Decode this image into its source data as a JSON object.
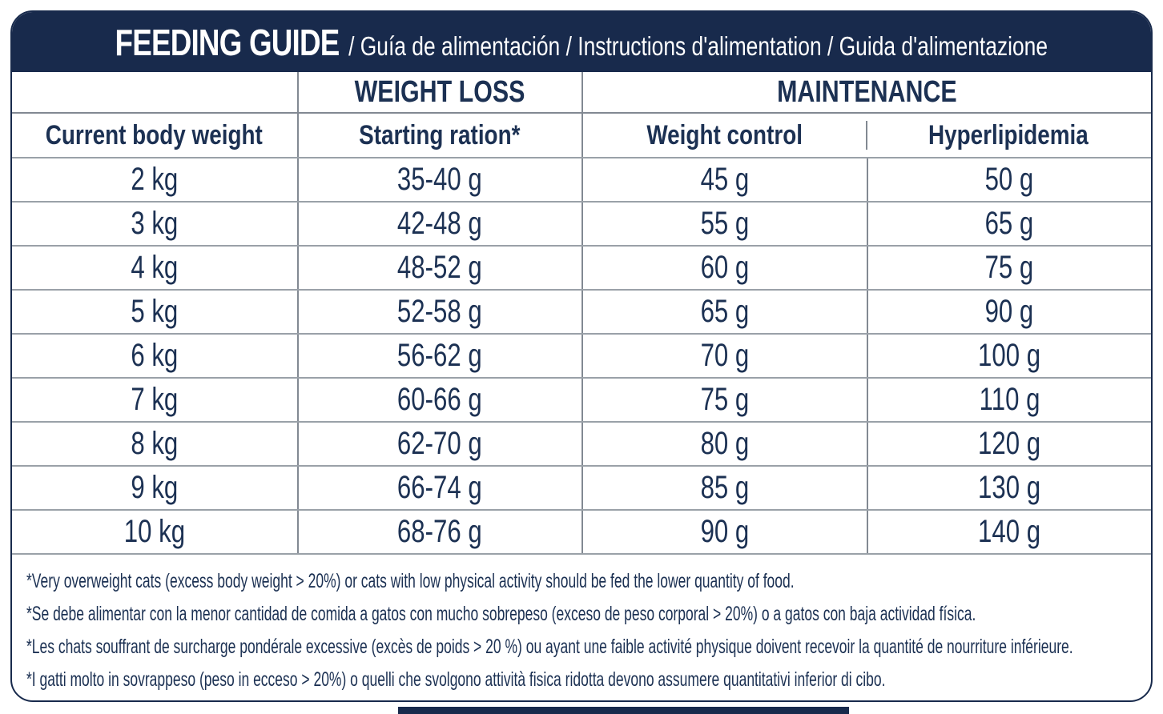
{
  "header": {
    "title": "FEEDING GUIDE",
    "languages": "/ Guía de alimentación / Instructions d'alimentation / Guida d'alimentazione"
  },
  "table": {
    "group_headers": {
      "weight_loss": "WEIGHT LOSS",
      "maintenance": "MAINTENANCE"
    },
    "column_headers": {
      "current_body_weight": "Current body weight",
      "starting_ration": "Starting ration*",
      "weight_control": "Weight control",
      "hyperlipidemia": "Hyperlipidemia"
    },
    "rows": [
      {
        "weight": "2 kg",
        "starting_ration": "35-40 g",
        "weight_control": "45 g",
        "hyperlipidemia": "50 g"
      },
      {
        "weight": "3 kg",
        "starting_ration": "42-48 g",
        "weight_control": "55 g",
        "hyperlipidemia": "65 g"
      },
      {
        "weight": "4 kg",
        "starting_ration": "48-52 g",
        "weight_control": "60 g",
        "hyperlipidemia": "75 g"
      },
      {
        "weight": "5 kg",
        "starting_ration": "52-58 g",
        "weight_control": "65 g",
        "hyperlipidemia": "90 g"
      },
      {
        "weight": "6 kg",
        "starting_ration": "56-62 g",
        "weight_control": "70 g",
        "hyperlipidemia": "100 g"
      },
      {
        "weight": "7 kg",
        "starting_ration": "60-66 g",
        "weight_control": "75 g",
        "hyperlipidemia": "110 g"
      },
      {
        "weight": "8 kg",
        "starting_ration": "62-70 g",
        "weight_control": "80 g",
        "hyperlipidemia": "120 g"
      },
      {
        "weight": "9 kg",
        "starting_ration": "66-74 g",
        "weight_control": "85 g",
        "hyperlipidemia": "130 g"
      },
      {
        "weight": "10 kg",
        "starting_ration": "68-76 g",
        "weight_control": "90 g",
        "hyperlipidemia": "140 g"
      }
    ]
  },
  "footnotes": [
    "*Very overweight cats (excess body weight > 20%) or cats with low physical activity should be fed the lower quantity of food.",
    "*Se debe alimentar con la menor cantidad de comida a gatos con mucho sobrepeso (exceso de peso corporal > 20%) o a gatos con baja actividad física.",
    "*Les chats souffrant de surcharge pondérale excessive (excès de poids > 20 %) ou ayant une faible activité physique doivent recevoir la quantité de nourriture inférieure.",
    "*I gatti molto in sovrappeso (peso in ecceso > 20%) o quelli che svolgono attività fisica ridotta devono assumere quantitativi inferior di cibo."
  ],
  "colors": {
    "navy": "#182a4c",
    "text_navy": "#1c3153",
    "row_line": "#9aa1a8",
    "column_line": "#828992"
  }
}
